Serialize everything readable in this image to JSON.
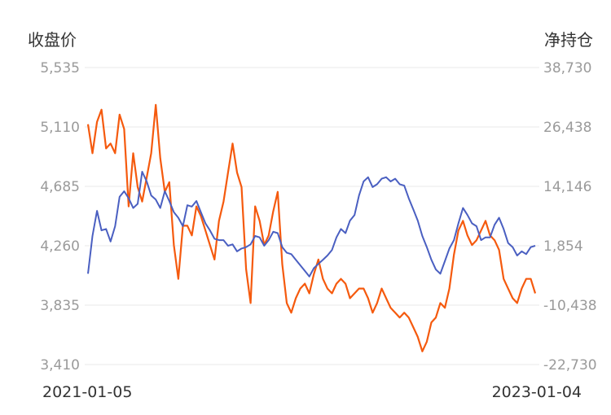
{
  "chart_data": {
    "type": "line",
    "left_axis_title": "收盘价",
    "right_axis_title": "净持仓",
    "left_ticks": [
      "5,535",
      "5,110",
      "4,685",
      "4,260",
      "3,835",
      "3,410"
    ],
    "right_ticks": [
      "38,730",
      "26,438",
      "14,146",
      "1,854",
      "-10,438",
      "-22,730"
    ],
    "x_start_label": "2021-01-05",
    "x_end_label": "2023-01-04",
    "y_left_range": [
      3410,
      5535
    ],
    "y_right_range": [
      -22730,
      38730
    ],
    "grid": true,
    "colors": {
      "price": "#4a5fc1",
      "net_position": "#f55a0e"
    },
    "series": [
      {
        "key": "price",
        "axis": "left",
        "values": [
          4060,
          4330,
          4510,
          4370,
          4380,
          4290,
          4400,
          4610,
          4650,
          4600,
          4530,
          4560,
          4790,
          4720,
          4620,
          4590,
          4530,
          4650,
          4580,
          4500,
          4460,
          4400,
          4550,
          4540,
          4580,
          4500,
          4420,
          4370,
          4310,
          4300,
          4300,
          4260,
          4270,
          4220,
          4240,
          4250,
          4270,
          4330,
          4320,
          4260,
          4300,
          4360,
          4350,
          4250,
          4210,
          4200,
          4160,
          4120,
          4080,
          4040,
          4100,
          4130,
          4160,
          4190,
          4230,
          4320,
          4380,
          4350,
          4440,
          4480,
          4620,
          4720,
          4750,
          4680,
          4700,
          4740,
          4750,
          4720,
          4740,
          4700,
          4690,
          4600,
          4520,
          4440,
          4330,
          4250,
          4160,
          4090,
          4060,
          4150,
          4240,
          4300,
          4420,
          4530,
          4480,
          4420,
          4400,
          4300,
          4320,
          4320,
          4410,
          4460,
          4380,
          4280,
          4250,
          4190,
          4220,
          4200,
          4250,
          4260
        ]
      },
      {
        "key": "net_position",
        "axis": "right",
        "values": [
          27000,
          21000,
          27500,
          30000,
          22000,
          23000,
          21000,
          29000,
          26000,
          10000,
          21000,
          14000,
          11000,
          16000,
          21000,
          31000,
          20000,
          13000,
          15000,
          2000,
          -5000,
          6000,
          6000,
          4000,
          10000,
          8000,
          5000,
          2000,
          -1000,
          7000,
          11000,
          17000,
          23000,
          17000,
          14000,
          -3000,
          -10000,
          10000,
          7000,
          2000,
          4000,
          9000,
          13000,
          -2000,
          -10000,
          -12000,
          -9000,
          -7000,
          -6000,
          -8000,
          -4000,
          -1000,
          -5000,
          -7000,
          -8000,
          -6000,
          -5000,
          -6000,
          -9000,
          -8000,
          -7000,
          -7000,
          -9000,
          -12000,
          -10000,
          -7000,
          -9000,
          -11000,
          -12000,
          -13000,
          -12000,
          -13000,
          -15000,
          -17000,
          -20000,
          -18000,
          -14000,
          -13000,
          -10000,
          -11000,
          -7000,
          0,
          5000,
          7000,
          4000,
          2000,
          3000,
          5000,
          7000,
          4000,
          3000,
          1000,
          -5000,
          -7000,
          -9000,
          -10000,
          -7000,
          -5000,
          -5000,
          -8000
        ]
      }
    ]
  }
}
